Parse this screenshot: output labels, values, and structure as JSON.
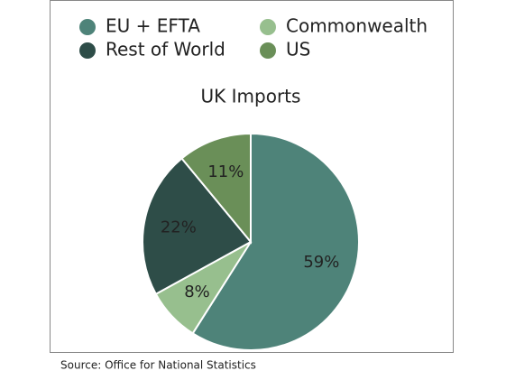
{
  "chart_data": {
    "type": "pie",
    "title": "UK Imports",
    "categories": [
      "EU + EFTA",
      "Commonwealth",
      "Rest of World",
      "US"
    ],
    "values": [
      59,
      8,
      22,
      11
    ],
    "value_labels": [
      "59%",
      "8%",
      "22%",
      "11%"
    ],
    "colors": [
      "#4e8379",
      "#97bf8e",
      "#2e4d48",
      "#6a8f58"
    ],
    "source": "Source: Office for National Statistics"
  }
}
